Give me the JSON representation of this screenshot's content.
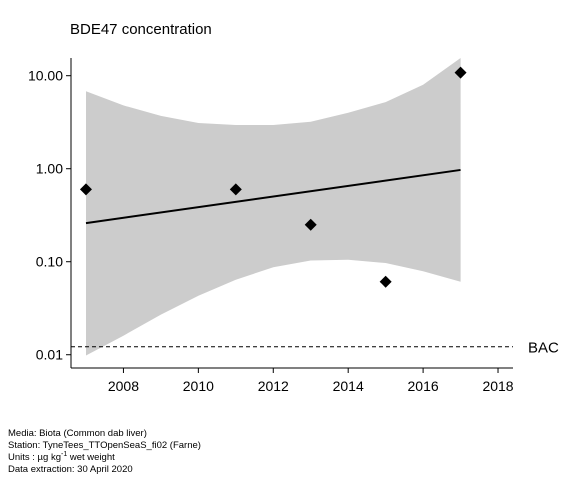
{
  "chart_data": {
    "type": "scatter",
    "title": "BDE47 concentration",
    "xlabel": "",
    "ylabel": "",
    "yscale": "log",
    "xlim": [
      2006.6,
      2018.4
    ],
    "ylim": [
      0.0072,
      15.5
    ],
    "x_ticks": [
      2008,
      2010,
      2012,
      2014,
      2016,
      2018
    ],
    "y_ticks": [
      0.01,
      0.1,
      1,
      10
    ],
    "y_tick_labels": [
      "0.01",
      "0.10",
      "1.00",
      "10.00"
    ],
    "points": [
      {
        "x": 2007,
        "y": 0.6
      },
      {
        "x": 2011,
        "y": 0.6
      },
      {
        "x": 2013,
        "y": 0.25
      },
      {
        "x": 2015,
        "y": 0.061
      },
      {
        "x": 2017,
        "y": 10.8
      }
    ],
    "trend": {
      "x": [
        2007,
        2017
      ],
      "y": [
        0.26,
        0.97
      ]
    },
    "confidence_band": {
      "x": [
        2007,
        2008,
        2009,
        2010,
        2011,
        2012,
        2013,
        2014,
        2015,
        2016,
        2017
      ],
      "upper": [
        6.8,
        4.8,
        3.7,
        3.1,
        2.95,
        2.95,
        3.2,
        4.0,
        5.2,
        8.0,
        15.5
      ],
      "lower": [
        0.0098,
        0.016,
        0.027,
        0.043,
        0.064,
        0.087,
        0.103,
        0.105,
        0.097,
        0.079,
        0.061
      ]
    },
    "reference_line": {
      "label": "BAC",
      "y": 0.0122,
      "style": "dashed"
    },
    "grid": false,
    "colors": {
      "band": "#cccccc",
      "points": "#000000",
      "trend": "#000000"
    }
  },
  "footnotes": {
    "media": "Media: Biota (Common dab liver)",
    "station": "Station: TyneTees_TTOpenSeaS_fi02 (Farne)",
    "units_prefix": "Units : µg kg",
    "units_exponent": "-1",
    "units_suffix": " wet weight",
    "extraction": "Data extraction: 30 April 2020"
  }
}
